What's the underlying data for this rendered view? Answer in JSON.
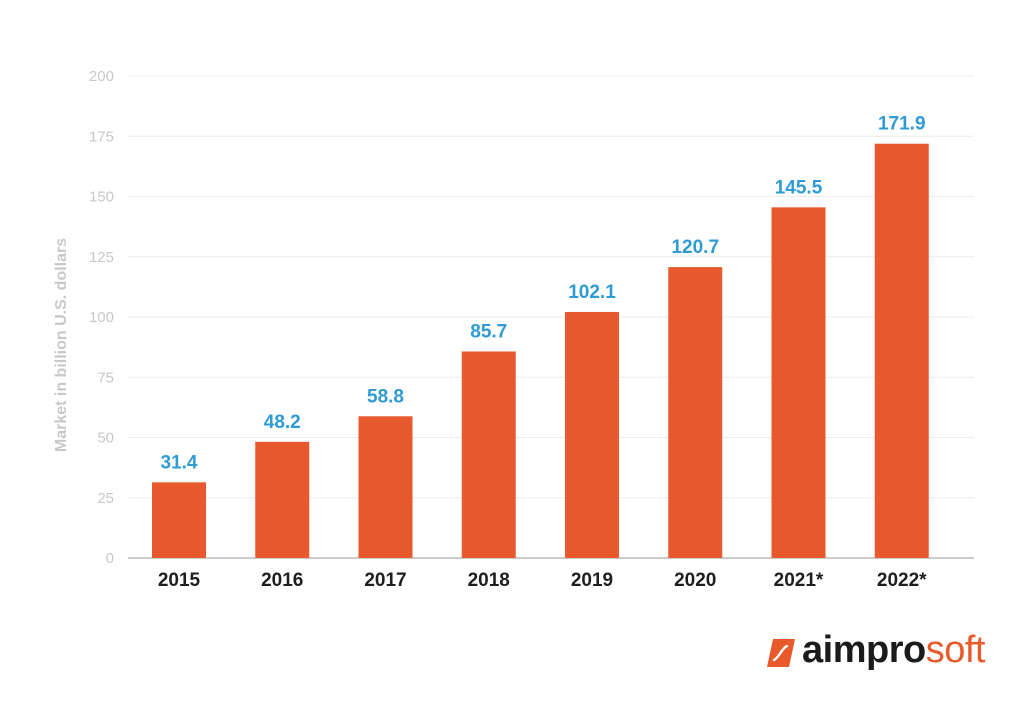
{
  "chart_data": {
    "type": "bar",
    "categories": [
      "2015",
      "2016",
      "2017",
      "2018",
      "2019",
      "2020",
      "2021*",
      "2022*"
    ],
    "values": [
      31.4,
      48.2,
      58.8,
      85.7,
      102.1,
      120.7,
      145.5,
      171.9
    ],
    "value_labels": [
      "31.4",
      "48.2",
      "58.8",
      "85.7",
      "102.1",
      "120.7",
      "145.5",
      "171.9"
    ],
    "ylabel": "Market in billion U.S. dollars",
    "ylim": [
      0,
      200
    ],
    "yticks": [
      "0",
      "25",
      "50",
      "75",
      "100",
      "125",
      "150",
      "175",
      "200"
    ],
    "grid": true,
    "bar_color": "#e8592d",
    "label_color": "#2f9bd5"
  },
  "logo": {
    "part1": "aimpro",
    "part2": "soft",
    "mark_color": "#e85a2c"
  }
}
